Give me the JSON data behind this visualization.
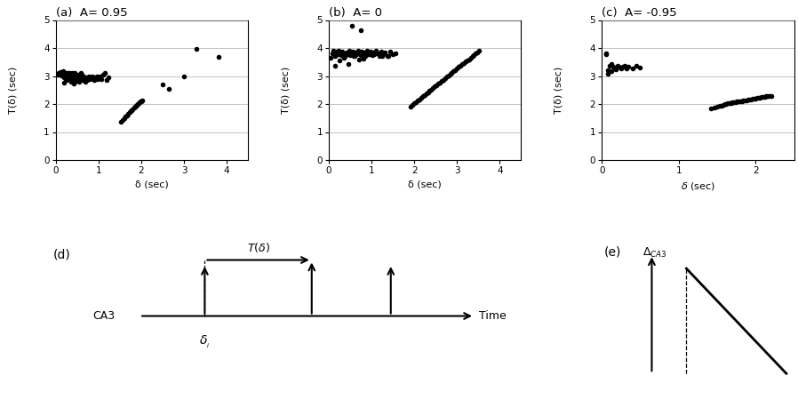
{
  "title_a": "(a)  A= 0.95",
  "title_b": "(b)  A= 0",
  "title_c": "(c)  A= -0.95",
  "title_d": "(d)",
  "title_e": "(e)",
  "xlabel": "δ (sec)",
  "ylabel": "T(δ) (sec)",
  "xlim_ab": [
    0,
    4.5
  ],
  "xlim_c": [
    0,
    2.5
  ],
  "ylim": [
    0,
    5
  ],
  "xticks_ab": [
    0,
    1,
    2,
    3,
    4
  ],
  "xticks_c": [
    0,
    1,
    2
  ],
  "yticks": [
    0,
    1,
    2,
    3,
    4,
    5
  ],
  "panel_a_cluster_x": [
    0.05,
    0.07,
    0.09,
    0.11,
    0.13,
    0.15,
    0.17,
    0.18,
    0.2,
    0.22,
    0.24,
    0.25,
    0.27,
    0.28,
    0.3,
    0.32,
    0.33,
    0.35,
    0.37,
    0.38,
    0.4,
    0.42,
    0.44,
    0.46,
    0.48,
    0.5,
    0.52,
    0.54,
    0.56,
    0.58,
    0.6,
    0.62,
    0.64,
    0.66,
    0.68,
    0.7,
    0.72,
    0.74,
    0.76,
    0.78,
    0.8,
    0.82,
    0.85,
    0.88,
    0.9,
    0.93,
    0.95,
    0.98,
    1.0,
    1.03,
    1.06,
    1.1,
    1.15,
    1.18,
    1.22,
    0.18,
    0.25,
    0.35,
    0.42,
    0.55,
    0.3,
    0.4,
    0.5,
    0.6,
    0.2,
    0.28,
    0.45,
    0.55
  ],
  "panel_a_cluster_y": [
    3.05,
    3.12,
    3.08,
    3.15,
    3.02,
    3.1,
    3.18,
    2.95,
    3.08,
    3.12,
    2.9,
    3.05,
    3.1,
    3.0,
    2.88,
    3.12,
    3.05,
    2.95,
    3.0,
    3.1,
    3.05,
    2.85,
    3.12,
    2.9,
    2.82,
    2.95,
    3.05,
    3.0,
    2.88,
    3.1,
    2.95,
    2.85,
    3.0,
    2.9,
    2.8,
    2.95,
    2.9,
    2.85,
    2.95,
    3.0,
    2.88,
    2.95,
    3.0,
    2.9,
    2.85,
    2.95,
    3.0,
    2.88,
    2.95,
    3.0,
    2.9,
    3.05,
    3.1,
    2.85,
    2.95,
    2.75,
    2.85,
    2.78,
    2.72,
    2.8,
    3.0,
    3.05,
    2.9,
    3.05,
    3.15,
    2.95,
    3.08,
    2.88
  ],
  "panel_a_line_x": [
    1.52,
    1.56,
    1.6,
    1.63,
    1.66,
    1.69,
    1.72,
    1.75,
    1.78,
    1.8,
    1.83,
    1.86,
    1.88,
    1.9,
    1.92,
    1.94,
    1.96,
    1.98,
    2.0,
    2.02
  ],
  "panel_a_line_y": [
    1.38,
    1.44,
    1.5,
    1.55,
    1.6,
    1.65,
    1.7,
    1.74,
    1.78,
    1.82,
    1.86,
    1.9,
    1.93,
    1.96,
    1.99,
    2.02,
    2.05,
    2.08,
    2.11,
    2.14
  ],
  "panel_a_sparse_x": [
    2.5,
    2.65,
    3.0,
    3.3,
    3.82
  ],
  "panel_a_sparse_y": [
    2.7,
    2.55,
    3.0,
    3.98,
    3.68
  ],
  "panel_b_cluster_x": [
    0.05,
    0.08,
    0.11,
    0.14,
    0.17,
    0.2,
    0.23,
    0.26,
    0.29,
    0.32,
    0.35,
    0.38,
    0.41,
    0.44,
    0.47,
    0.5,
    0.53,
    0.56,
    0.59,
    0.62,
    0.65,
    0.68,
    0.71,
    0.74,
    0.77,
    0.8,
    0.83,
    0.86,
    0.89,
    0.92,
    0.95,
    0.98,
    1.01,
    1.04,
    1.07,
    1.1,
    1.14,
    1.18,
    1.22,
    1.27,
    1.32,
    1.38,
    1.44,
    1.5,
    1.57,
    0.15,
    0.25,
    0.35,
    0.45,
    0.6,
    0.7,
    0.82,
    0.95,
    1.1,
    1.25,
    1.4,
    0.55,
    0.75
  ],
  "panel_b_cluster_y": [
    3.65,
    3.8,
    3.9,
    3.72,
    3.88,
    3.78,
    3.92,
    3.85,
    3.75,
    3.88,
    3.82,
    3.72,
    3.85,
    3.78,
    3.92,
    3.75,
    3.82,
    3.88,
    3.72,
    3.85,
    3.78,
    3.92,
    3.82,
    3.75,
    3.88,
    3.78,
    3.85,
    3.72,
    3.92,
    3.78,
    3.82,
    3.88,
    3.75,
    3.85,
    3.78,
    3.92,
    3.82,
    3.72,
    3.88,
    3.78,
    3.85,
    3.72,
    3.88,
    3.78,
    3.82,
    3.35,
    3.55,
    3.65,
    3.42,
    3.7,
    3.58,
    3.62,
    3.78,
    3.85,
    3.7,
    3.72,
    4.8,
    4.62
  ],
  "panel_b_line_x": [
    1.92,
    1.96,
    2.0,
    2.04,
    2.08,
    2.12,
    2.16,
    2.2,
    2.24,
    2.28,
    2.32,
    2.36,
    2.4,
    2.44,
    2.48,
    2.52,
    2.56,
    2.6,
    2.64,
    2.68,
    2.72,
    2.76,
    2.8,
    2.84,
    2.88,
    2.92,
    2.96,
    3.0,
    3.04,
    3.08,
    3.12,
    3.16,
    3.2,
    3.24,
    3.28,
    3.32,
    3.36,
    3.4,
    3.44,
    3.48,
    3.52
  ],
  "panel_b_line_y": [
    1.92,
    1.97,
    2.02,
    2.07,
    2.12,
    2.17,
    2.22,
    2.27,
    2.32,
    2.37,
    2.42,
    2.47,
    2.52,
    2.57,
    2.62,
    2.67,
    2.72,
    2.77,
    2.82,
    2.87,
    2.92,
    2.97,
    3.02,
    3.07,
    3.12,
    3.17,
    3.22,
    3.27,
    3.32,
    3.37,
    3.42,
    3.47,
    3.52,
    3.57,
    3.6,
    3.65,
    3.7,
    3.75,
    3.8,
    3.85,
    3.9
  ],
  "panel_c_cluster_x": [
    0.05,
    0.08,
    0.1,
    0.12,
    0.15,
    0.17,
    0.2,
    0.22,
    0.25,
    0.27,
    0.3,
    0.35,
    0.4,
    0.45,
    0.5,
    0.08,
    0.12,
    0.18,
    0.25,
    0.32,
    0.05
  ],
  "panel_c_cluster_y": [
    3.82,
    3.22,
    3.38,
    3.42,
    3.32,
    3.28,
    3.38,
    3.32,
    3.28,
    3.32,
    3.38,
    3.32,
    3.28,
    3.35,
    3.3,
    3.08,
    3.18,
    3.25,
    3.3,
    3.28,
    3.78
  ],
  "panel_c_line_x": [
    1.42,
    1.46,
    1.5,
    1.53,
    1.56,
    1.58,
    1.6,
    1.62,
    1.64,
    1.66,
    1.68,
    1.7,
    1.72,
    1.74,
    1.76,
    1.78,
    1.8,
    1.82,
    1.84,
    1.86,
    1.88,
    1.9,
    1.92,
    1.94,
    1.96,
    1.98,
    2.0,
    2.02,
    2.04,
    2.06,
    2.08,
    2.1,
    2.12,
    2.14,
    2.16,
    2.18,
    2.2
  ],
  "panel_c_line_y": [
    1.85,
    1.88,
    1.91,
    1.93,
    1.95,
    1.97,
    1.99,
    2.0,
    2.02,
    2.03,
    2.04,
    2.05,
    2.06,
    2.07,
    2.08,
    2.09,
    2.1,
    2.11,
    2.12,
    2.13,
    2.14,
    2.15,
    2.16,
    2.17,
    2.18,
    2.19,
    2.2,
    2.21,
    2.22,
    2.23,
    2.24,
    2.25,
    2.26,
    2.27,
    2.28,
    2.29,
    2.3
  ],
  "marker_size": 16,
  "marker_color": "black",
  "bg_color": "white",
  "grid_color": "#aaaaaa"
}
